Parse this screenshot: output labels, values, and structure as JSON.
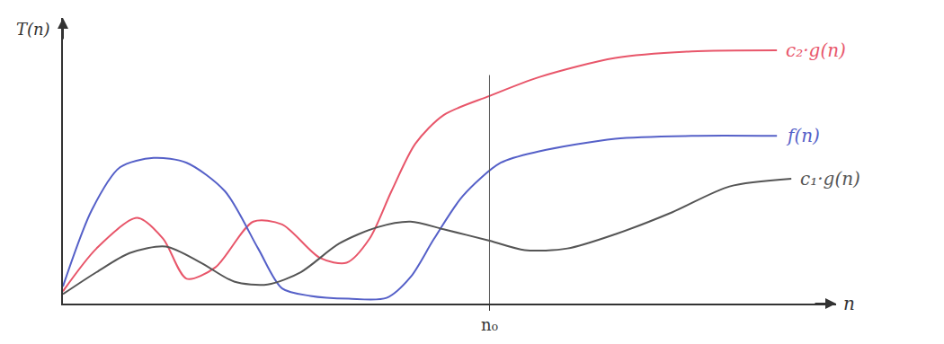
{
  "chart_data": {
    "type": "line",
    "x_label": "n",
    "y_label": "T(n)",
    "xlim": [
      0,
      14.5
    ],
    "ylim": [
      0,
      10
    ],
    "xticks": [
      {
        "value": 8,
        "label": "n₀"
      }
    ],
    "yticks": [],
    "tick_labels": "x",
    "grid": false,
    "series": [
      {
        "name": "c₂·g(n)",
        "color": "#e8566a",
        "x": [
          0,
          0.63,
          1.39,
          1.88,
          2.32,
          2.86,
          3.57,
          4.11,
          4.82,
          5.32,
          5.75,
          6.16,
          6.61,
          7.14,
          8,
          8.93,
          10.36,
          11.79,
          13.39
        ],
        "values": [
          0.43,
          1.93,
          3,
          2.27,
          0.87,
          1.27,
          2.87,
          2.77,
          1.6,
          1.43,
          2.27,
          3.93,
          5.6,
          6.6,
          7.27,
          7.93,
          8.6,
          8.83,
          8.87
        ]
      },
      {
        "name": "f(n)",
        "color": "#5560c8",
        "x": [
          0,
          0.54,
          1.07,
          1.7,
          2.32,
          3.04,
          3.66,
          4.11,
          4.64,
          5.36,
          6.07,
          6.52,
          6.96,
          7.5,
          8.21,
          8.93,
          10.36,
          11.79,
          13.39
        ],
        "values": [
          0.6,
          3.27,
          4.77,
          5.1,
          4.93,
          3.93,
          1.93,
          0.53,
          0.27,
          0.17,
          0.2,
          0.93,
          2.27,
          3.77,
          4.93,
          5.33,
          5.77,
          5.87,
          5.87
        ]
      },
      {
        "name": "c₁·g(n)",
        "color": "#555555",
        "x": [
          0,
          0.63,
          1.25,
          1.93,
          2.59,
          3.21,
          3.84,
          4.46,
          5.18,
          5.89,
          6.52,
          7.14,
          8,
          8.66,
          9.46,
          10.36,
          11.43,
          12.5,
          13.66
        ],
        "values": [
          0.33,
          1.1,
          1.77,
          2,
          1.43,
          0.77,
          0.67,
          1.1,
          2.1,
          2.67,
          2.87,
          2.6,
          2.2,
          1.87,
          1.93,
          2.43,
          3.2,
          4.1,
          4.37
        ]
      }
    ]
  }
}
